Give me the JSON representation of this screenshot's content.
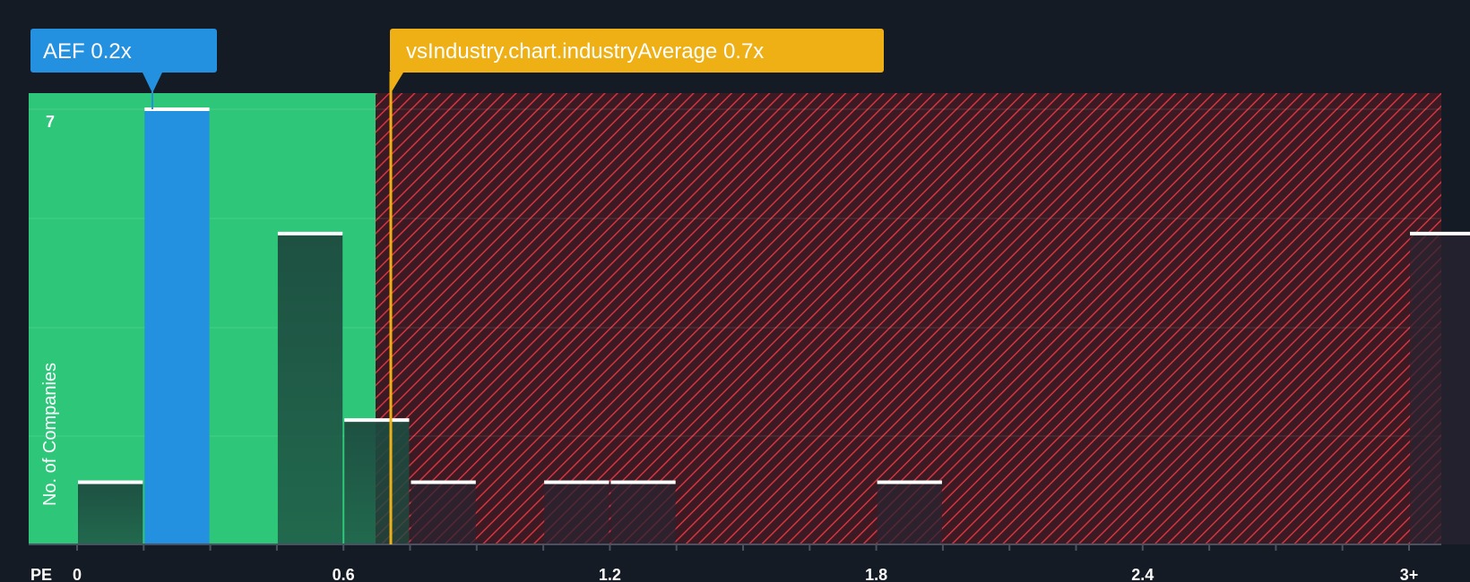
{
  "chart_data": {
    "type": "bar",
    "title": "",
    "xlabel": "PE",
    "ylabel": "No. of Companies",
    "xlim": [
      0,
      3.0
    ],
    "ylim": [
      0,
      7
    ],
    "x_ticks": [
      "0",
      "0.6",
      "1.2",
      "1.8",
      "2.4",
      "3+"
    ],
    "x_tick_values": [
      0,
      0.6,
      1.2,
      1.8,
      2.4,
      3.0
    ],
    "y_ticks": [
      "7"
    ],
    "bin_width": 0.15,
    "bins": [
      {
        "start": 0.0,
        "count": 1
      },
      {
        "start": 0.15,
        "count": 7
      },
      {
        "start": 0.45,
        "count": 5
      },
      {
        "start": 0.6,
        "count": 2
      },
      {
        "start": 0.75,
        "count": 1
      },
      {
        "start": 1.05,
        "count": 1
      },
      {
        "start": 1.2,
        "count": 1
      },
      {
        "start": 1.8,
        "count": 1
      },
      {
        "start": 3.0,
        "count": 5
      }
    ],
    "highlight_bin_start": 0.15,
    "company": {
      "label": "AEF 0.2x",
      "value": 0.2
    },
    "industry": {
      "label": "vsIndustry.chart.industryAverage 0.7x",
      "value": 0.7
    },
    "colors": {
      "background": "#151b24",
      "good_zone": "#2ec77a",
      "bad_zone": "#3b1a24",
      "hatch": "#d5343f",
      "company": "#2390e0",
      "industry": "#eeb015",
      "bar": "#1f4a3f",
      "bar_in_bad": "#2a2432",
      "cap": "#ffffff",
      "axis": "#4a5160"
    }
  }
}
